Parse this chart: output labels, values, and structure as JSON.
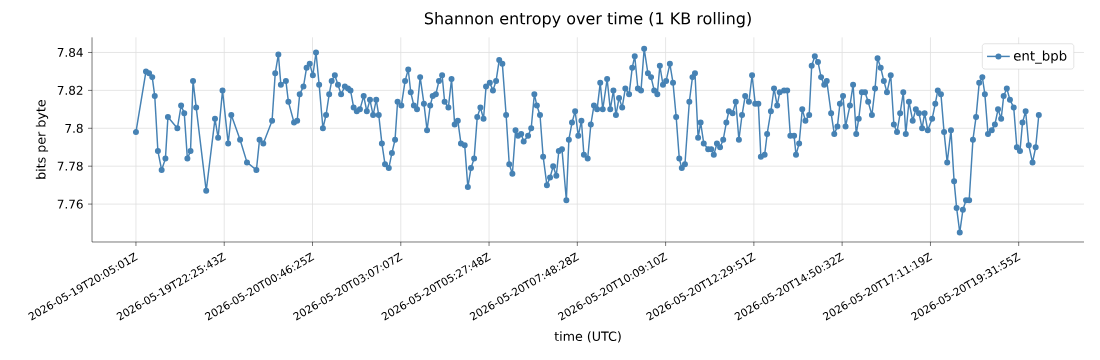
{
  "chart_data": {
    "type": "line",
    "title": "Shannon entropy over time (1 KB rolling)",
    "xlabel": "time (UTC)",
    "ylabel": "bits per byte",
    "x": [
      "2026-05-19T20:05",
      "2026-05-19T20:21",
      "2026-05-19T20:26",
      "2026-05-19T20:31",
      "2026-05-19T20:35",
      "2026-05-19T20:40",
      "2026-05-19T20:46",
      "2026-05-19T20:52",
      "2026-05-19T20:56",
      "2026-05-19T21:11",
      "2026-05-19T21:17",
      "2026-05-19T21:22",
      "2026-05-19T21:27",
      "2026-05-19T21:32",
      "2026-05-19T21:36",
      "2026-05-19T21:41",
      "2026-05-19T21:57",
      "2026-05-19T22:11",
      "2026-05-19T22:16",
      "2026-05-19T22:23",
      "2026-05-19T22:32",
      "2026-05-19T22:37",
      "2026-05-19T22:51",
      "2026-05-19T23:02",
      "2026-05-19T23:17",
      "2026-05-19T23:22",
      "2026-05-19T23:28",
      "2026-05-19T23:42",
      "2026-05-19T23:47",
      "2026-05-19T23:52",
      "2026-05-19T23:56",
      "2026-05-20T00:04",
      "2026-05-20T00:08",
      "2026-05-20T00:17",
      "2026-05-20T00:22",
      "2026-05-20T00:26",
      "2026-05-20T00:32",
      "2026-05-20T00:37",
      "2026-05-20T00:42",
      "2026-05-20T00:47",
      "2026-05-20T00:52",
      "2026-05-20T00:57",
      "2026-05-20T01:03",
      "2026-05-20T01:08",
      "2026-05-20T01:13",
      "2026-05-20T01:17",
      "2026-05-20T01:22",
      "2026-05-20T01:27",
      "2026-05-20T01:32",
      "2026-05-20T01:38",
      "2026-05-20T01:43",
      "2026-05-20T01:47",
      "2026-05-20T01:52",
      "2026-05-20T01:57",
      "2026-05-20T02:02",
      "2026-05-20T02:08",
      "2026-05-20T02:13",
      "2026-05-20T02:18",
      "2026-05-20T02:23",
      "2026-05-20T02:28",
      "2026-05-20T02:32",
      "2026-05-20T02:37",
      "2026-05-20T02:42",
      "2026-05-20T02:48",
      "2026-05-20T02:53",
      "2026-05-20T02:58",
      "2026-05-20T03:02",
      "2026-05-20T03:08",
      "2026-05-20T03:14",
      "2026-05-20T03:19",
      "2026-05-20T03:23",
      "2026-05-20T03:28",
      "2026-05-20T03:33",
      "2026-05-20T03:38",
      "2026-05-20T03:44",
      "2026-05-20T03:49",
      "2026-05-20T03:54",
      "2026-05-20T03:58",
      "2026-05-20T04:03",
      "2026-05-20T04:08",
      "2026-05-20T04:13",
      "2026-05-20T04:17",
      "2026-05-20T04:23",
      "2026-05-20T04:28",
      "2026-05-20T04:33",
      "2026-05-20T04:38",
      "2026-05-20T04:43",
      "2026-05-20T04:49",
      "2026-05-20T04:54",
      "2026-05-20T04:59",
      "2026-05-20T05:04",
      "2026-05-20T05:09",
      "2026-05-20T05:14",
      "2026-05-20T05:19",
      "2026-05-20T05:23",
      "2026-05-20T05:29",
      "2026-05-20T05:34",
      "2026-05-20T05:39",
      "2026-05-20T05:44",
      "2026-05-20T05:49",
      "2026-05-20T05:55",
      "2026-05-20T06:00",
      "2026-05-20T06:05",
      "2026-05-20T06:10",
      "2026-05-20T06:14",
      "2026-05-20T06:19",
      "2026-05-20T06:23",
      "2026-05-20T06:30",
      "2026-05-20T06:35",
      "2026-05-20T06:40",
      "2026-05-20T06:44",
      "2026-05-20T06:49",
      "2026-05-20T06:54",
      "2026-05-20T07:00",
      "2026-05-20T07:05",
      "2026-05-20T07:10",
      "2026-05-20T07:15",
      "2026-05-20T07:19",
      "2026-05-20T07:24",
      "2026-05-20T07:31",
      "2026-05-20T07:35",
      "2026-05-20T07:40",
      "2026-05-20T07:45",
      "2026-05-20T07:50",
      "2026-05-20T07:55",
      "2026-05-20T07:59",
      "2026-05-20T08:05",
      "2026-05-20T08:10",
      "2026-05-20T08:15",
      "2026-05-20T08:20",
      "2026-05-20T08:25",
      "2026-05-20T08:29",
      "2026-05-20T08:36",
      "2026-05-20T08:41",
      "2026-05-20T08:46",
      "2026-05-20T08:50",
      "2026-05-20T08:55",
      "2026-05-20T09:00",
      "2026-05-20T09:05",
      "2026-05-20T09:11",
      "2026-05-20T09:16",
      "2026-05-20T09:20",
      "2026-05-20T09:25",
      "2026-05-20T09:30",
      "2026-05-20T09:35",
      "2026-05-20T09:41",
      "2026-05-20T09:46",
      "2026-05-20T09:51",
      "2026-05-20T09:56",
      "2026-05-20T10:00",
      "2026-05-20T10:05",
      "2026-05-20T10:10",
      "2026-05-20T10:16",
      "2026-05-20T10:21",
      "2026-05-20T10:26",
      "2026-05-20T10:31",
      "2026-05-20T10:35",
      "2026-05-20T10:40",
      "2026-05-20T10:47",
      "2026-05-20T10:52",
      "2026-05-20T10:56",
      "2026-05-20T11:01",
      "2026-05-20T11:05",
      "2026-05-20T11:10",
      "2026-05-20T11:17",
      "2026-05-20T11:22",
      "2026-05-20T11:26",
      "2026-05-20T11:31",
      "2026-05-20T11:36",
      "2026-05-20T11:41",
      "2026-05-20T11:46",
      "2026-05-20T11:50",
      "2026-05-20T11:56",
      "2026-05-20T12:01",
      "2026-05-20T12:06",
      "2026-05-20T12:11",
      "2026-05-20T12:16",
      "2026-05-20T12:22",
      "2026-05-20T12:27",
      "2026-05-20T12:32",
      "2026-05-20T12:37",
      "2026-05-20T12:41",
      "2026-05-20T12:47",
      "2026-05-20T12:51",
      "2026-05-20T12:57",
      "2026-05-20T13:02",
      "2026-05-20T13:07",
      "2026-05-20T13:11",
      "2026-05-20T13:18",
      "2026-05-20T13:23",
      "2026-05-20T13:28",
      "2026-05-20T13:34",
      "2026-05-20T13:37",
      "2026-05-20T13:42",
      "2026-05-20T13:47",
      "2026-05-20T13:52",
      "2026-05-20T13:58",
      "2026-05-20T14:02",
      "2026-05-20T14:07",
      "2026-05-20T14:12",
      "2026-05-20T14:17",
      "2026-05-20T14:22",
      "2026-05-20T14:26",
      "2026-05-20T14:33",
      "2026-05-20T14:38",
      "2026-05-20T14:43",
      "2026-05-20T14:47",
      "2026-05-20T14:52",
      "2026-05-20T14:56",
      "2026-05-20T15:03",
      "2026-05-20T15:08",
      "2026-05-20T15:13",
      "2026-05-20T15:17",
      "2026-05-20T15:22",
      "2026-05-20T15:27",
      "2026-05-20T15:32",
      "2026-05-20T15:38",
      "2026-05-20T15:43",
      "2026-05-20T15:47",
      "2026-05-20T15:52",
      "2026-05-20T15:57",
      "2026-05-20T16:02",
      "2026-05-20T16:08",
      "2026-05-20T16:13",
      "2026-05-20T16:18",
      "2026-05-20T16:23",
      "2026-05-20T16:28",
      "2026-05-20T16:32",
      "2026-05-20T16:37",
      "2026-05-20T16:43",
      "2026-05-20T16:48",
      "2026-05-20T16:53",
      "2026-05-20T16:58",
      "2026-05-20T17:02",
      "2026-05-20T17:07",
      "2026-05-20T17:14",
      "2026-05-20T17:19",
      "2026-05-20T17:23",
      "2026-05-20T17:28",
      "2026-05-20T17:33",
      "2026-05-20T17:38",
      "2026-05-20T17:44",
      "2026-05-20T17:49",
      "2026-05-20T17:53",
      "2026-05-20T17:58",
      "2026-05-20T18:03",
      "2026-05-20T18:08",
      "2026-05-20T18:13",
      "2026-05-20T18:19",
      "2026-05-20T18:24",
      "2026-05-20T18:29",
      "2026-05-20T18:34",
      "2026-05-20T18:38",
      "2026-05-20T18:43",
      "2026-05-20T18:49",
      "2026-05-20T18:54",
      "2026-05-20T18:59",
      "2026-05-20T19:04",
      "2026-05-20T19:08",
      "2026-05-20T19:13",
      "2026-05-20T19:18",
      "2026-05-20T19:24",
      "2026-05-20T19:29",
      "2026-05-20T19:34",
      "2026-05-20T19:38",
      "2026-05-20T19:43",
      "2026-05-20T19:48",
      "2026-05-20T19:54",
      "2026-05-20T19:59",
      "2026-05-20T20:04"
    ],
    "series": [
      {
        "name": "ent_bpb",
        "color": "#4682b4",
        "values": [
          7.798,
          7.83,
          7.829,
          7.827,
          7.817,
          7.788,
          7.778,
          7.784,
          7.806,
          7.8,
          7.812,
          7.808,
          7.784,
          7.788,
          7.825,
          7.811,
          7.767,
          7.805,
          7.795,
          7.82,
          7.792,
          7.807,
          7.794,
          7.782,
          7.778,
          7.794,
          7.792,
          7.804,
          7.829,
          7.839,
          7.823,
          7.825,
          7.814,
          7.803,
          7.804,
          7.818,
          7.822,
          7.832,
          7.834,
          7.828,
          7.84,
          7.823,
          7.8,
          7.807,
          7.818,
          7.825,
          7.828,
          7.823,
          7.818,
          7.822,
          7.821,
          7.82,
          7.811,
          7.809,
          7.81,
          7.817,
          7.809,
          7.815,
          7.807,
          7.815,
          7.807,
          7.792,
          7.781,
          7.779,
          7.787,
          7.794,
          7.814,
          7.812,
          7.825,
          7.831,
          7.819,
          7.812,
          7.81,
          7.827,
          7.813,
          7.799,
          7.812,
          7.817,
          7.818,
          7.825,
          7.828,
          7.814,
          7.811,
          7.826,
          7.802,
          7.804,
          7.792,
          7.791,
          7.769,
          7.779,
          7.784,
          7.806,
          7.811,
          7.805,
          7.822,
          7.824,
          7.82,
          7.825,
          7.836,
          7.834,
          7.807,
          7.781,
          7.776,
          7.799,
          7.796,
          7.797,
          7.793,
          7.796,
          7.8,
          7.818,
          7.812,
          7.807,
          7.785,
          7.77,
          7.774,
          7.78,
          7.775,
          7.788,
          7.789,
          7.762,
          7.794,
          7.803,
          7.809,
          7.796,
          7.804,
          7.786,
          7.784,
          7.802,
          7.812,
          7.81,
          7.824,
          7.81,
          7.826,
          7.81,
          7.82,
          7.807,
          7.816,
          7.811,
          7.821,
          7.818,
          7.832,
          7.838,
          7.821,
          7.82,
          7.842,
          7.829,
          7.827,
          7.82,
          7.818,
          7.833,
          7.823,
          7.825,
          7.834,
          7.824,
          7.806,
          7.784,
          7.779,
          7.781,
          7.814,
          7.827,
          7.829,
          7.795,
          7.803,
          7.792,
          7.789,
          7.789,
          7.786,
          7.792,
          7.79,
          7.794,
          7.803,
          7.809,
          7.808,
          7.814,
          7.794,
          7.807,
          7.817,
          7.814,
          7.828,
          7.813,
          7.813,
          7.785,
          7.786,
          7.797,
          7.809,
          7.821,
          7.812,
          7.819,
          7.82,
          7.82,
          7.796,
          7.796,
          7.786,
          7.792,
          7.81,
          7.804,
          7.807,
          7.833,
          7.838,
          7.835,
          7.827,
          7.823,
          7.825,
          7.808,
          7.797,
          7.801,
          7.813,
          7.817,
          7.801,
          7.812,
          7.823,
          7.797,
          7.805,
          7.819,
          7.819,
          7.814,
          7.807,
          7.821,
          7.837,
          7.832,
          7.825,
          7.819,
          7.828,
          7.802,
          7.798,
          7.808,
          7.819,
          7.797,
          7.814,
          7.804,
          7.81,
          7.808,
          7.8,
          7.808,
          7.799,
          7.805,
          7.813,
          7.82,
          7.818,
          7.798,
          7.782,
          7.799,
          7.772,
          7.758,
          7.745,
          7.757,
          7.762,
          7.762,
          7.794,
          7.806,
          7.824,
          7.827,
          7.818,
          7.797,
          7.799,
          7.802,
          7.81,
          7.805,
          7.817,
          7.821,
          7.815,
          7.811,
          7.79,
          7.788,
          7.803,
          7.809,
          7.791,
          7.782,
          7.79,
          7.807
        ]
      }
    ],
    "xlim": [
      "2026-05-19T18:55",
      "2026-05-20T21:16"
    ],
    "ylim": [
      7.74,
      7.848
    ],
    "xticks": [
      {
        "value": "2026-05-19T20:05:01",
        "label": "2026-05-19T20:05:01Z"
      },
      {
        "value": "2026-05-19T22:25:43",
        "label": "2026-05-19T22:25:43Z"
      },
      {
        "value": "2026-05-20T00:46:25",
        "label": "2026-05-20T00:46:25Z"
      },
      {
        "value": "2026-05-20T03:07:07",
        "label": "2026-05-20T03:07:07Z"
      },
      {
        "value": "2026-05-20T05:27:48",
        "label": "2026-05-20T05:27:48Z"
      },
      {
        "value": "2026-05-20T07:48:28",
        "label": "2026-05-20T07:48:28Z"
      },
      {
        "value": "2026-05-20T10:09:10",
        "label": "2026-05-20T10:09:10Z"
      },
      {
        "value": "2026-05-20T12:29:51",
        "label": "2026-05-20T12:29:51Z"
      },
      {
        "value": "2026-05-20T14:50:32",
        "label": "2026-05-20T14:50:32Z"
      },
      {
        "value": "2026-05-20T17:11:19",
        "label": "2026-05-20T17:11:19Z"
      },
      {
        "value": "2026-05-20T19:31:55",
        "label": "2026-05-20T19:31:55Z"
      }
    ],
    "yticks": [
      7.76,
      7.78,
      7.8,
      7.82,
      7.84
    ],
    "grid": true,
    "legend": "top right",
    "marker": "circle",
    "line_style": "solid"
  }
}
